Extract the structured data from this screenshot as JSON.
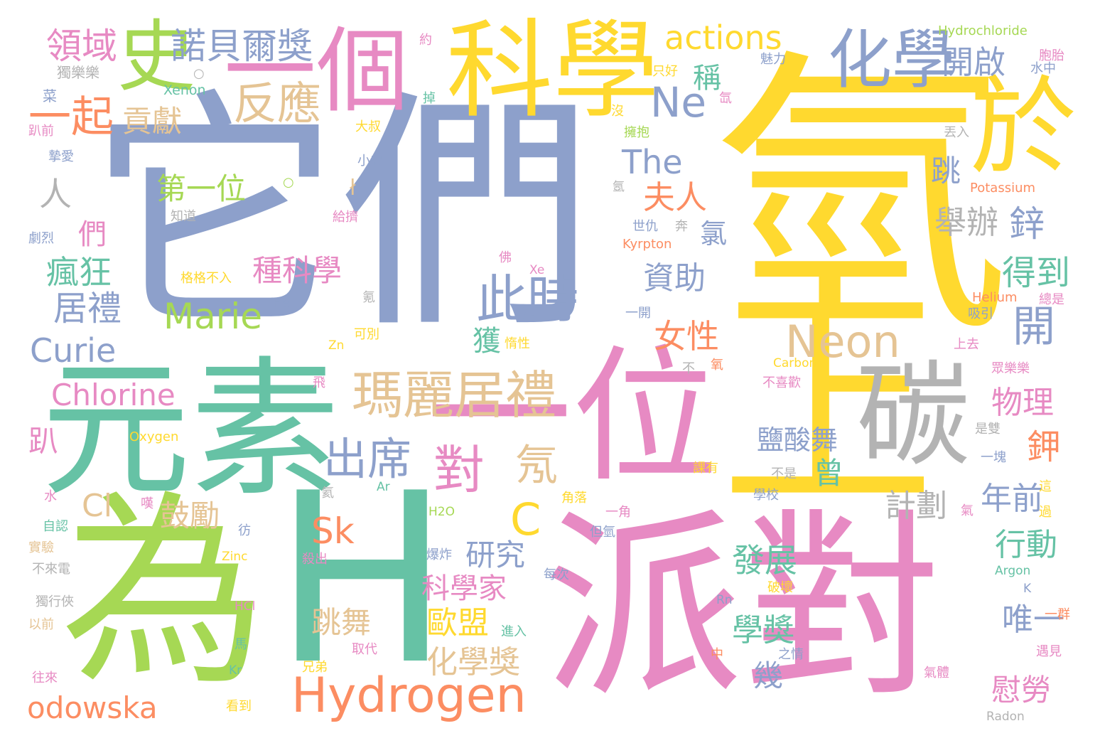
{
  "palette": {
    "yellow": "#ffd92f",
    "slate": "#8da0cb",
    "green": "#a6d854",
    "teal": "#66c2a5",
    "pink": "#e78ac3",
    "orange": "#fc8d62",
    "tan": "#e5c494",
    "gray": "#b3b3b3"
  },
  "words": [
    {
      "text": "氫",
      "color": "yellow"
    },
    {
      "text": "它們",
      "color": "slate"
    },
    {
      "text": "元素",
      "color": "teal"
    },
    {
      "text": "為",
      "color": "green"
    },
    {
      "text": "H",
      "color": "teal"
    },
    {
      "text": "派對",
      "color": "pink"
    },
    {
      "text": "一位",
      "color": "pink"
    },
    {
      "text": "上",
      "color": "yellow"
    },
    {
      "text": "碳",
      "color": "gray"
    },
    {
      "text": "科學",
      "color": "yellow"
    },
    {
      "text": "一個",
      "color": "pink"
    },
    {
      "text": "化學",
      "color": "slate"
    },
    {
      "text": "於",
      "color": "yellow"
    },
    {
      "text": "瑪麗居禮",
      "color": "tan"
    },
    {
      "text": "Hydrogen",
      "color": "orange"
    },
    {
      "text": "Neon",
      "color": "tan"
    },
    {
      "text": "此時",
      "color": "slate"
    },
    {
      "text": "出席",
      "color": "slate"
    },
    {
      "text": "對",
      "color": "pink"
    },
    {
      "text": "氖",
      "color": "tan"
    },
    {
      "text": "C",
      "color": "yellow"
    },
    {
      "text": "史",
      "color": "green"
    },
    {
      "text": "諾貝爾獎",
      "color": "slate"
    },
    {
      "text": "領域",
      "color": "pink"
    },
    {
      "text": "一起",
      "color": "orange"
    },
    {
      "text": "反應",
      "color": "tan"
    },
    {
      "text": "貢獻",
      "color": "tan"
    },
    {
      "text": "actions",
      "color": "yellow"
    },
    {
      "text": "Ne",
      "color": "slate"
    },
    {
      "text": "稱",
      "color": "teal"
    },
    {
      "text": "開啟",
      "color": "slate"
    },
    {
      "text": "The",
      "color": "slate"
    },
    {
      "text": "第一位",
      "color": "green"
    },
    {
      "text": "人",
      "color": "gray"
    },
    {
      "text": "夫人",
      "color": "orange"
    },
    {
      "text": "跳",
      "color": "slate"
    },
    {
      "text": "舉辦",
      "color": "gray"
    },
    {
      "text": "鋅",
      "color": "slate"
    },
    {
      "text": "氯",
      "color": "slate"
    },
    {
      "text": "們",
      "color": "pink"
    },
    {
      "text": "瘋狂",
      "color": "teal"
    },
    {
      "text": "種科學",
      "color": "pink"
    },
    {
      "text": "資助",
      "color": "slate"
    },
    {
      "text": "得到",
      "color": "teal"
    },
    {
      "text": "居禮",
      "color": "slate"
    },
    {
      "text": "Marie",
      "color": "green"
    },
    {
      "text": "女性",
      "color": "orange"
    },
    {
      "text": "Curie",
      "color": "slate"
    },
    {
      "text": "獲",
      "color": "teal"
    },
    {
      "text": "開",
      "color": "slate"
    },
    {
      "text": "Chlorine",
      "color": "pink"
    },
    {
      "text": "物理",
      "color": "pink"
    },
    {
      "text": "鉀",
      "color": "orange"
    },
    {
      "text": "鹽酸舞",
      "color": "slate"
    },
    {
      "text": "曾",
      "color": "teal"
    },
    {
      "text": "Sk",
      "color": "orange"
    },
    {
      "text": "Cl",
      "color": "tan"
    },
    {
      "text": "鼓勵",
      "color": "tan"
    },
    {
      "text": "計劃",
      "color": "gray"
    },
    {
      "text": "年前",
      "color": "slate"
    },
    {
      "text": "研究",
      "color": "slate"
    },
    {
      "text": "發展",
      "color": "teal"
    },
    {
      "text": "行動",
      "color": "teal"
    },
    {
      "text": "科學家",
      "color": "pink"
    },
    {
      "text": "odowska",
      "color": "orange"
    },
    {
      "text": "跳舞",
      "color": "tan"
    },
    {
      "text": "歐盟",
      "color": "yellow"
    },
    {
      "text": "學獎",
      "color": "teal"
    },
    {
      "text": "唯一",
      "color": "slate"
    },
    {
      "text": "化學獎",
      "color": "tan"
    },
    {
      "text": "幾",
      "color": "slate"
    },
    {
      "text": "慰勞",
      "color": "pink"
    },
    {
      "text": "趴",
      "color": "pink"
    },
    {
      "text": "Hydrochloride",
      "color": "green"
    },
    {
      "text": "Xenon",
      "color": "teal"
    },
    {
      "text": "獨樂樂",
      "color": "gray"
    },
    {
      "text": "魅力",
      "color": "slate"
    },
    {
      "text": "胞胎",
      "color": "pink"
    },
    {
      "text": "水中",
      "color": "slate"
    },
    {
      "text": "約",
      "color": "pink"
    },
    {
      "text": "只好",
      "color": "yellow"
    },
    {
      "text": "菜",
      "color": "slate"
    },
    {
      "text": "趴前",
      "color": "pink"
    },
    {
      "text": "掉",
      "color": "teal"
    },
    {
      "text": "氙",
      "color": "pink"
    },
    {
      "text": "大叔",
      "color": "yellow"
    },
    {
      "text": "沒",
      "color": "yellow"
    },
    {
      "text": "擁抱",
      "color": "green"
    },
    {
      "text": "丟入",
      "color": "gray"
    },
    {
      "text": "摯愛",
      "color": "slate"
    },
    {
      "text": "小弟",
      "color": "slate"
    },
    {
      "text": "知道",
      "color": "gray"
    },
    {
      "text": "給擠",
      "color": "pink"
    },
    {
      "text": "氬",
      "color": "gray"
    },
    {
      "text": "Potassium",
      "color": "orange"
    },
    {
      "text": "世仇",
      "color": "slate"
    },
    {
      "text": "奔",
      "color": "gray"
    },
    {
      "text": "劇烈",
      "color": "slate"
    },
    {
      "text": "Kyrpton",
      "color": "orange"
    },
    {
      "text": "佛",
      "color": "pink"
    },
    {
      "text": "格格不入",
      "color": "yellow"
    },
    {
      "text": "Xe",
      "color": "pink"
    },
    {
      "text": "氪",
      "color": "gray"
    },
    {
      "text": "He",
      "color": "slate"
    },
    {
      "text": "Helium",
      "color": "orange"
    },
    {
      "text": "總是",
      "color": "pink"
    },
    {
      "text": "吸引",
      "color": "slate"
    },
    {
      "text": "一開",
      "color": "slate"
    },
    {
      "text": "可別",
      "color": "yellow"
    },
    {
      "text": "Zn",
      "color": "yellow"
    },
    {
      "text": "惰性",
      "color": "yellow"
    },
    {
      "text": "上去",
      "color": "pink"
    },
    {
      "text": "不",
      "color": "gray"
    },
    {
      "text": "氧",
      "color": "orange"
    },
    {
      "text": "Carbon",
      "color": "yellow"
    },
    {
      "text": "眾樂樂",
      "color": "pink"
    },
    {
      "text": "飛",
      "color": "pink"
    },
    {
      "text": "不喜歡",
      "color": "pink"
    },
    {
      "text": "Oxygen",
      "color": "yellow"
    },
    {
      "text": "是雙",
      "color": "gray"
    },
    {
      "text": "一塊",
      "color": "slate"
    },
    {
      "text": "課有",
      "color": "yellow"
    },
    {
      "text": "不是",
      "color": "gray"
    },
    {
      "text": "Ar",
      "color": "teal"
    },
    {
      "text": "氦",
      "color": "gray"
    },
    {
      "text": "水",
      "color": "pink"
    },
    {
      "text": "嘆",
      "color": "pink"
    },
    {
      "text": "H2O",
      "color": "green"
    },
    {
      "text": "角落",
      "color": "yellow"
    },
    {
      "text": "一角",
      "color": "pink"
    },
    {
      "text": "學校",
      "color": "slate"
    },
    {
      "text": "這",
      "color": "yellow"
    },
    {
      "text": "過",
      "color": "yellow"
    },
    {
      "text": "氣",
      "color": "pink"
    },
    {
      "text": "自認",
      "color": "teal"
    },
    {
      "text": "彷",
      "color": "slate"
    },
    {
      "text": "但氫",
      "color": "slate"
    },
    {
      "text": "實驗",
      "color": "tan"
    },
    {
      "text": "爆炸",
      "color": "slate"
    },
    {
      "text": "Zinc",
      "color": "yellow"
    },
    {
      "text": "每次",
      "color": "slate"
    },
    {
      "text": "殺出",
      "color": "pink"
    },
    {
      "text": "不來電",
      "color": "gray"
    },
    {
      "text": "Argon",
      "color": "teal"
    },
    {
      "text": "K",
      "color": "slate"
    },
    {
      "text": "破壞",
      "color": "yellow"
    },
    {
      "text": "Rn",
      "color": "slate"
    },
    {
      "text": "獨行俠",
      "color": "gray"
    },
    {
      "text": "HCl",
      "color": "pink"
    },
    {
      "text": "一群",
      "color": "orange"
    },
    {
      "text": "以前",
      "color": "tan"
    },
    {
      "text": "進入",
      "color": "teal"
    },
    {
      "text": "馬",
      "color": "teal"
    },
    {
      "text": "取代",
      "color": "pink"
    },
    {
      "text": "中",
      "color": "orange"
    },
    {
      "text": "之情",
      "color": "slate"
    },
    {
      "text": "遇見",
      "color": "pink"
    },
    {
      "text": "兄弟",
      "color": "yellow"
    },
    {
      "text": "Kr",
      "color": "teal"
    },
    {
      "text": "往來",
      "color": "pink"
    },
    {
      "text": "氣體",
      "color": "pink"
    },
    {
      "text": "看到",
      "color": "yellow"
    },
    {
      "text": "Radon",
      "color": "gray"
    }
  ]
}
